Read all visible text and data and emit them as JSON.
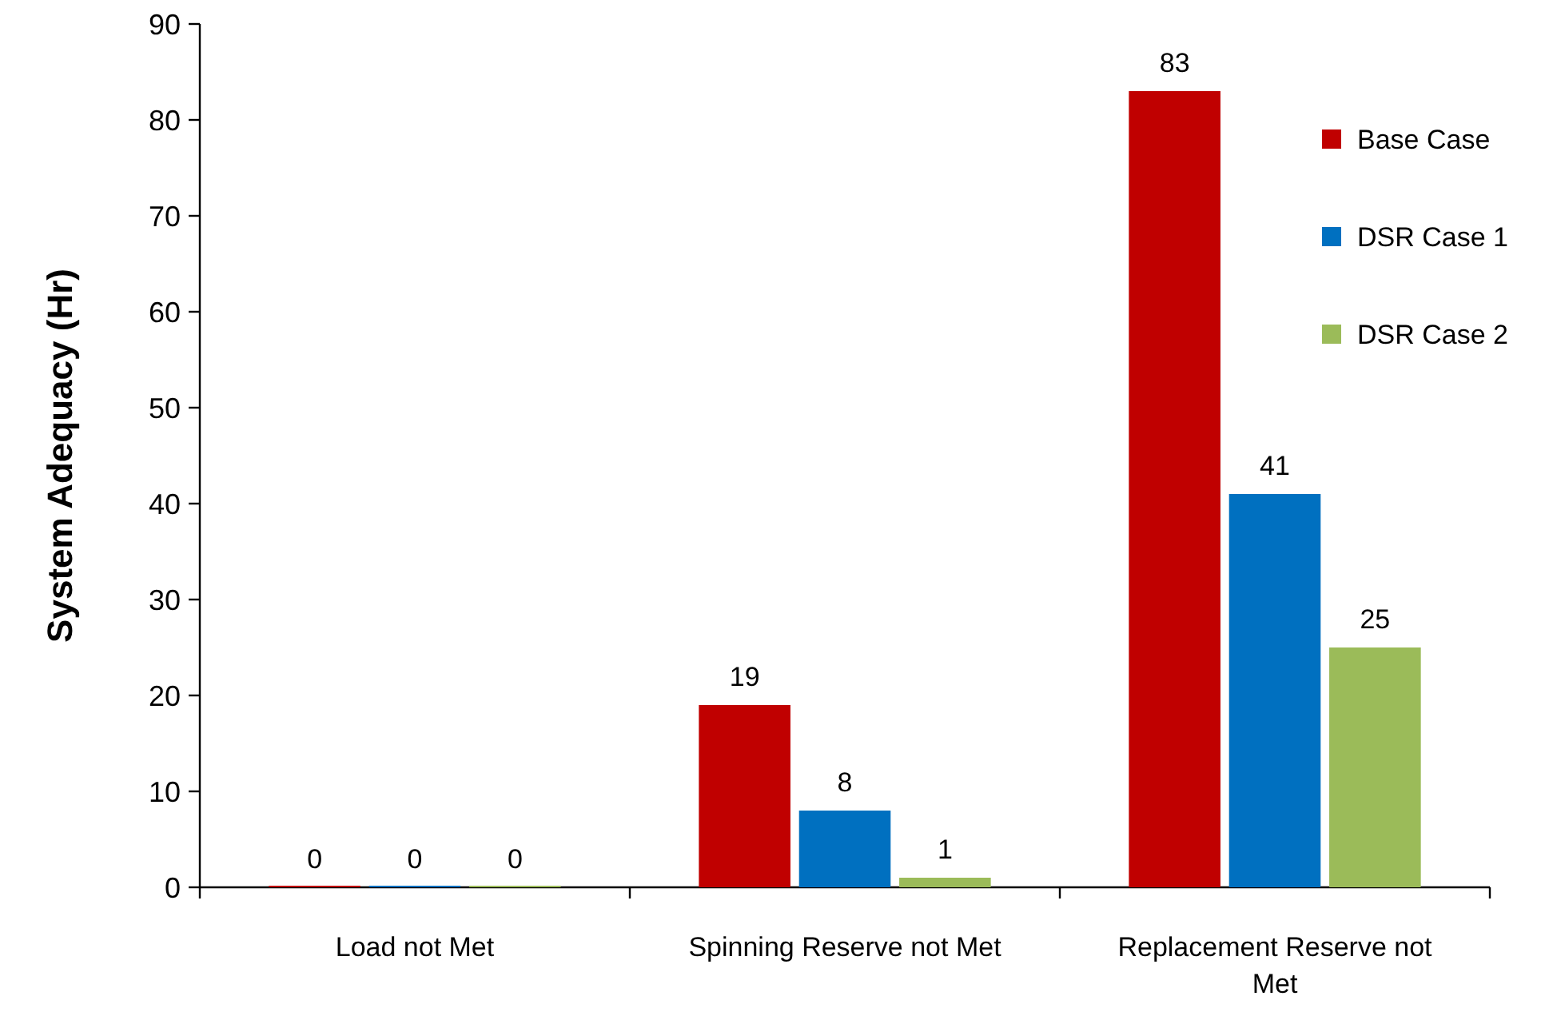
{
  "chart_data": {
    "type": "bar",
    "ylabel": "System Adequacy (Hr)",
    "categories": [
      "Load not Met",
      "Spinning Reserve not Met",
      "Replacement Reserve not Met"
    ],
    "series": [
      {
        "name": "Base Case",
        "color": "#c00000",
        "values": [
          0,
          19,
          83
        ]
      },
      {
        "name": "DSR Case 1",
        "color": "#0070c0",
        "values": [
          0,
          8,
          41
        ]
      },
      {
        "name": "DSR Case 2",
        "color": "#9bbb59",
        "values": [
          0,
          1,
          25
        ]
      }
    ],
    "ylim": [
      0,
      90
    ],
    "yticks": [
      0,
      10,
      20,
      30,
      40,
      50,
      60,
      70,
      80,
      90
    ],
    "grid": false,
    "legend": "top right",
    "data_labels": true
  }
}
